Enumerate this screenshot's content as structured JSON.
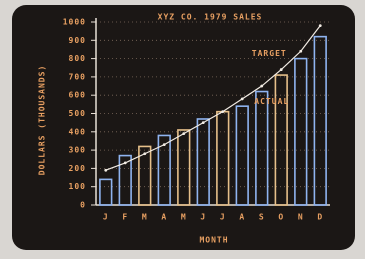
{
  "chart_data": {
    "type": "bar",
    "title": "XYZ CO. 1979 SALES",
    "x_label": "MONTH",
    "y_label": "DOLLARS (THOUSANDS)",
    "categories": [
      "J",
      "F",
      "M",
      "A",
      "M",
      "J",
      "J",
      "A",
      "S",
      "O",
      "N",
      "D"
    ],
    "series": [
      {
        "name": "ACTUAL",
        "type": "bar",
        "colors": [
          "#8fb4f0",
          "#8fb4f0",
          "#e6c08a",
          "#8fb4f0",
          "#e6c08a",
          "#8fb4f0",
          "#e6c08a",
          "#8fb4f0",
          "#8fb4f0",
          "#e6c08a",
          "#8fb4f0",
          "#8fb4f0"
        ],
        "values": [
          140,
          270,
          320,
          380,
          410,
          470,
          510,
          540,
          620,
          710,
          800,
          920
        ]
      },
      {
        "name": "TARGET",
        "type": "line",
        "color": "#f2ece4",
        "values": [
          190,
          230,
          280,
          330,
          390,
          450,
          510,
          580,
          650,
          740,
          840,
          980
        ]
      }
    ],
    "ylim": [
      0,
      1000
    ],
    "yticks": [
      0,
      100,
      200,
      300,
      400,
      500,
      600,
      700,
      800,
      900,
      1000
    ],
    "grid": true
  }
}
